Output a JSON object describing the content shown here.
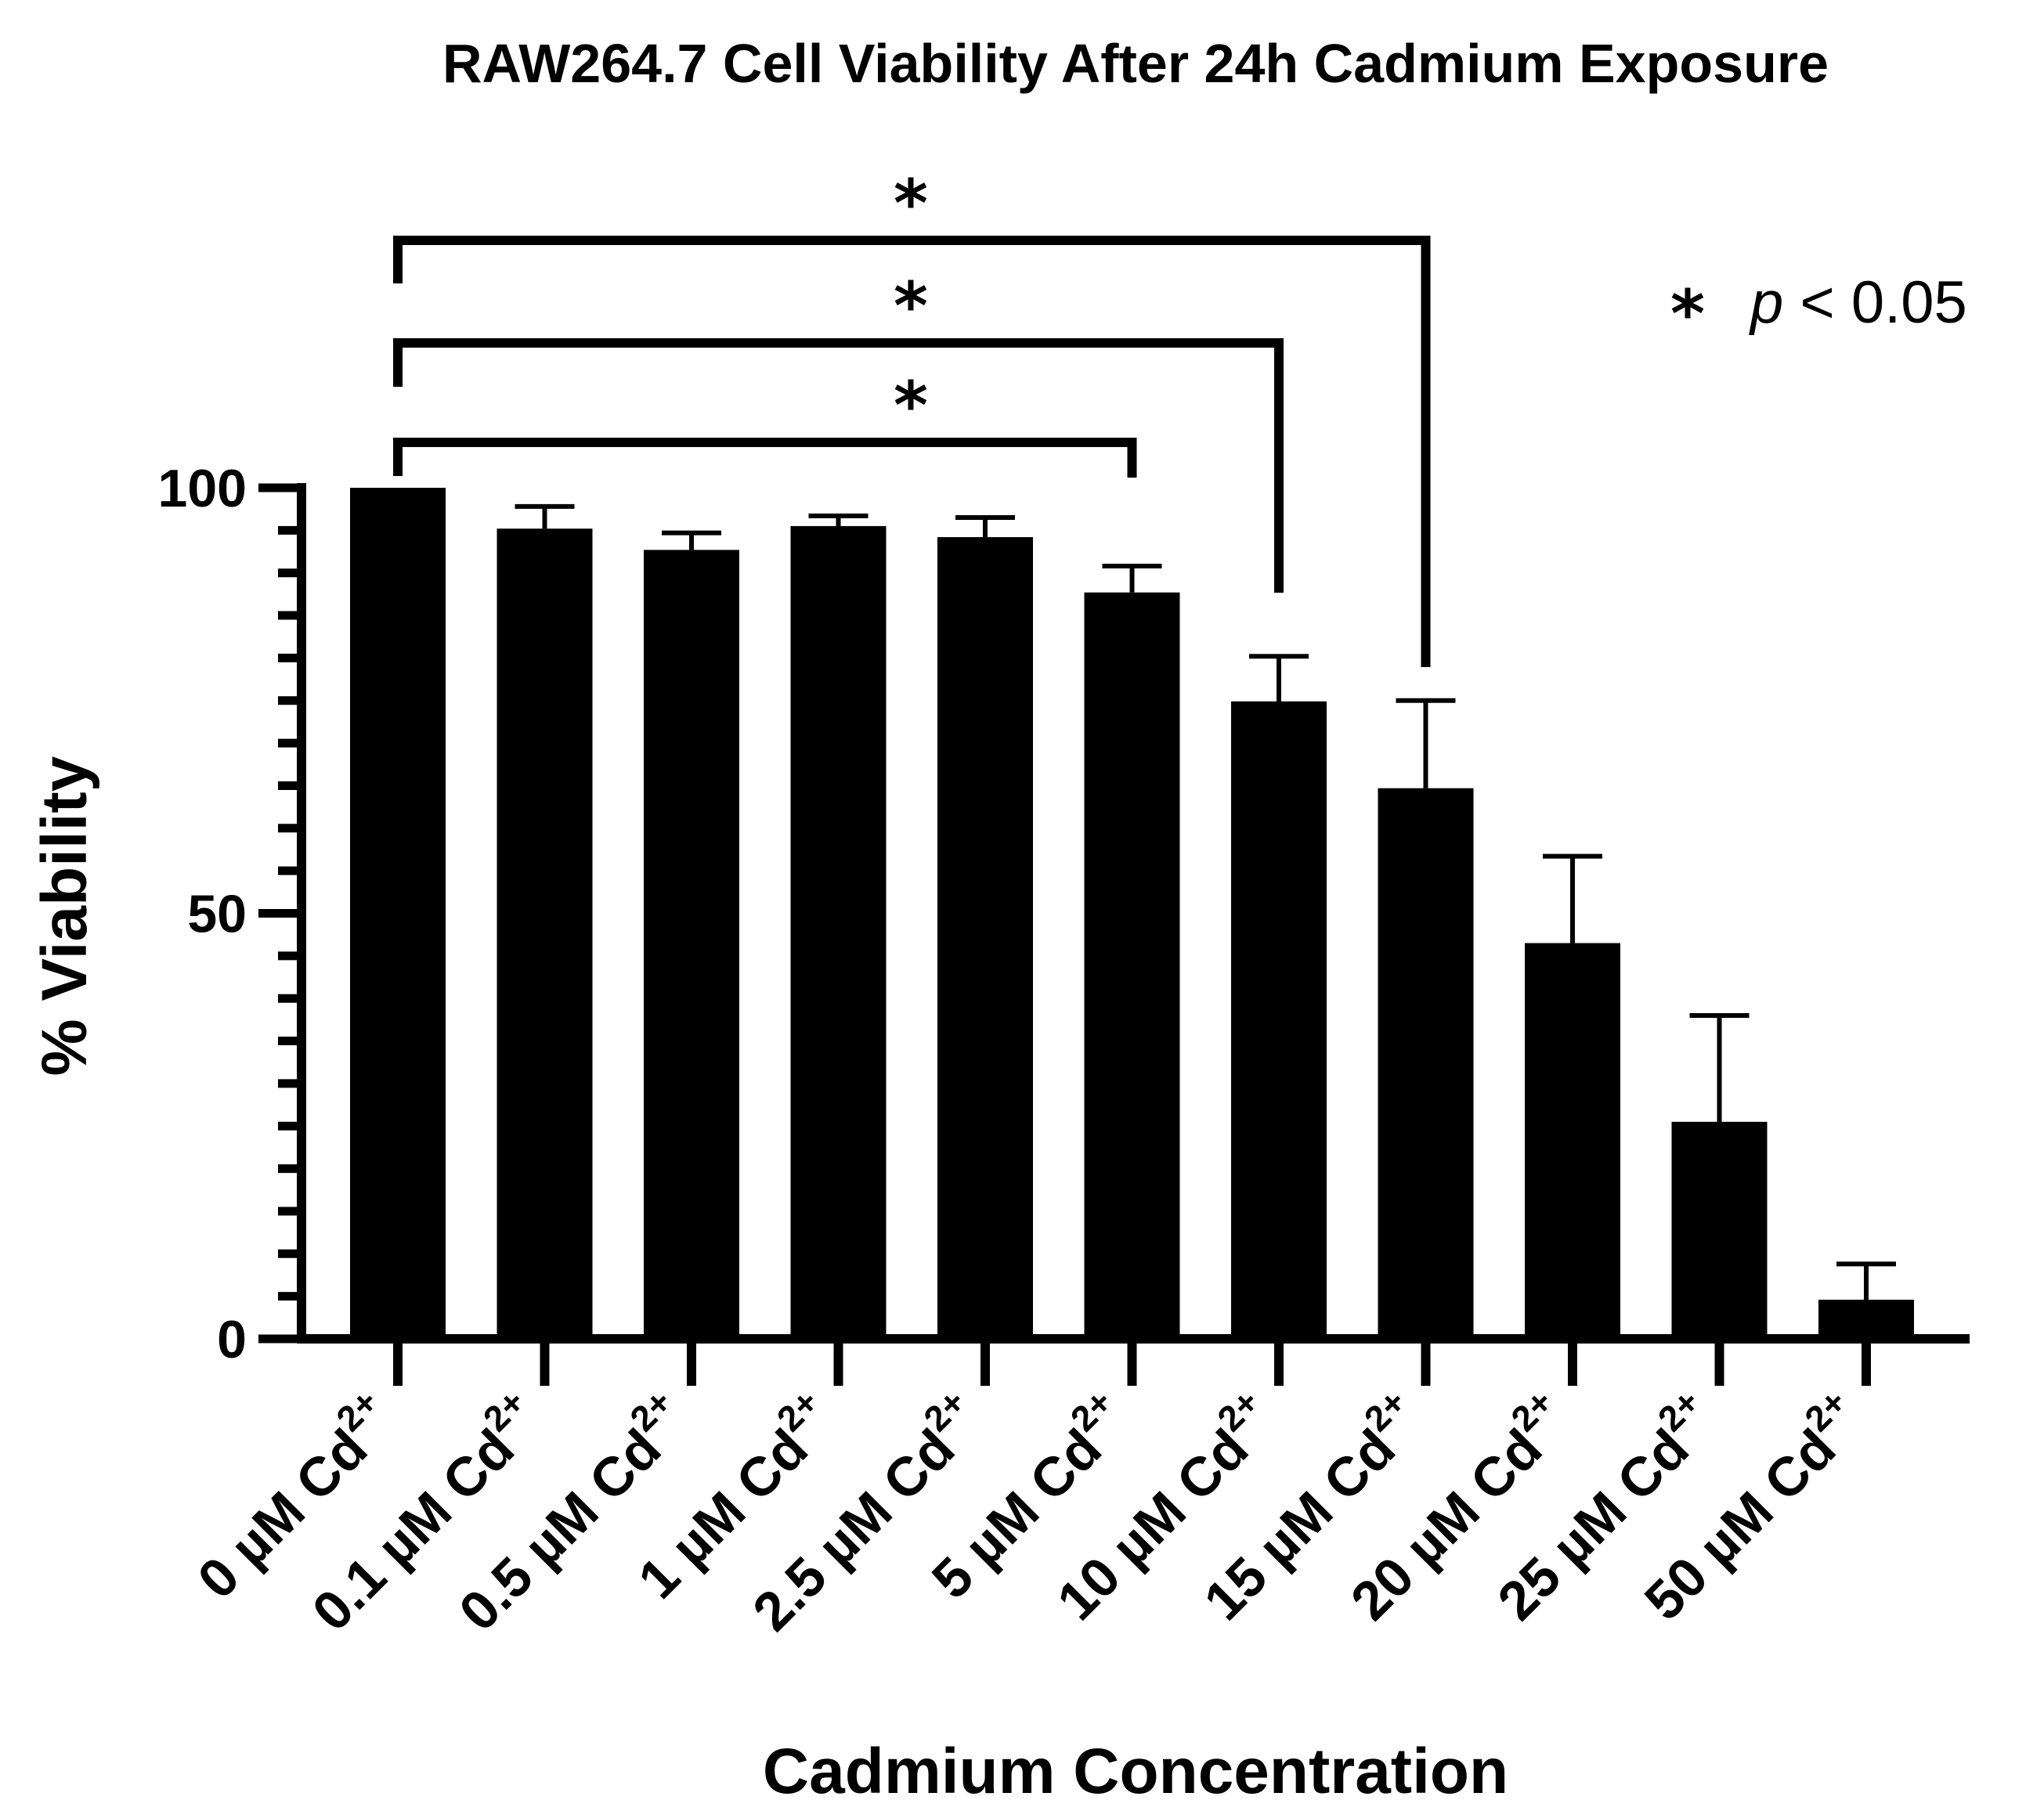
{
  "chart_data": {
    "type": "bar",
    "title": "RAW264.7 Cell Viability After 24h Cadmium Exposure",
    "xlabel": "Cadmium Concentration",
    "ylabel": "% Viability",
    "ylim": [
      0,
      100
    ],
    "yticks": [
      "0",
      "50",
      "100"
    ],
    "ion_label": "Cd",
    "ion_charge": "2+",
    "categories": [
      "0 µM",
      "0.1 µM",
      "0.5 µM",
      "1 µM",
      "2.5 µM",
      "5 µM",
      "10 µM",
      "15 µM",
      "20 µM",
      "25 µM",
      "50 µM"
    ],
    "values": [
      100,
      95.2,
      92.7,
      95.5,
      94.2,
      87.7,
      74.9,
      64.7,
      46.5,
      25.5,
      4.6
    ],
    "error": [
      0,
      2.6,
      2.0,
      1.2,
      2.3,
      3.1,
      5.3,
      10.3,
      10.2,
      12.5,
      4.2
    ],
    "color": "#000000",
    "significance": [
      {
        "from": "0 µM",
        "to": "5 µM",
        "label": "*"
      },
      {
        "from": "0 µM",
        "to": "10 µM",
        "label": "*"
      },
      {
        "from": "0 µM",
        "to": "15 µM",
        "label": "*"
      }
    ],
    "legend_note": {
      "symbol": "*",
      "var": "p",
      "text": " < 0.05"
    }
  }
}
